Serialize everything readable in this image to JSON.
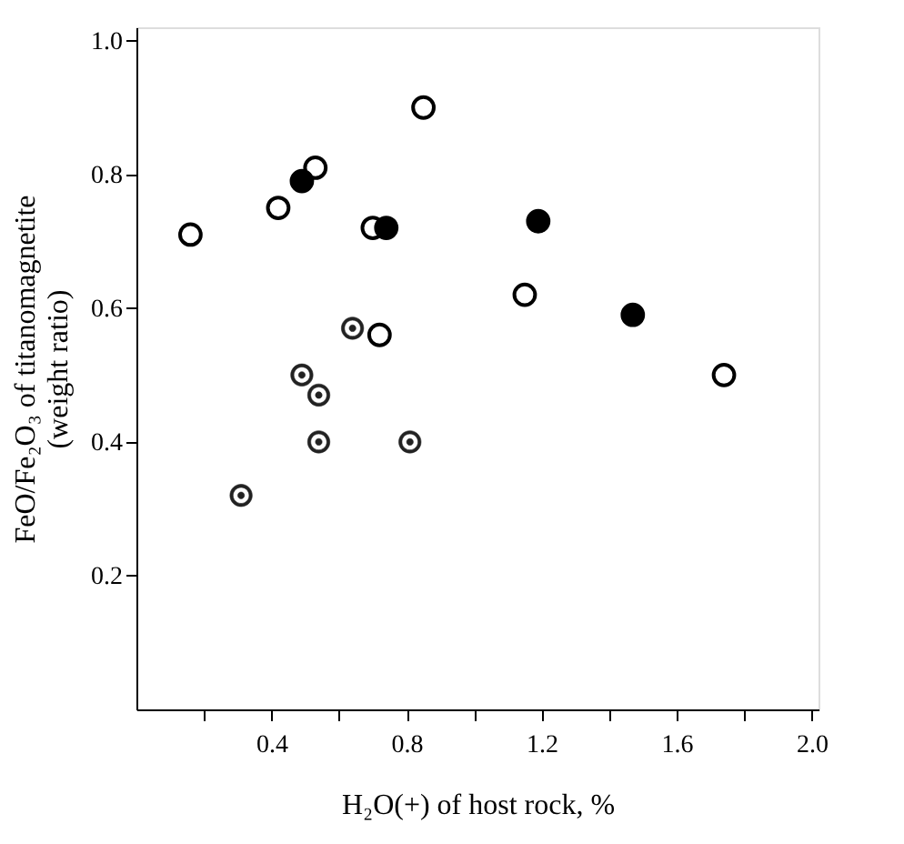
{
  "chart_data": {
    "type": "scatter",
    "xlabel": "H₂O(+) of host rock, %",
    "ylabel": "FeO/Fe₂O₃ of titanomagnetite\n(weight ratio)",
    "xlim": [
      0,
      2.02
    ],
    "ylim": [
      0,
      1.02
    ],
    "xticks": [
      {
        "value": 0.2,
        "label": null
      },
      0.4,
      {
        "value": 0.6,
        "label": null
      },
      0.8,
      {
        "value": 1.0,
        "label": null
      },
      1.2,
      {
        "value": 1.4,
        "label": null
      },
      1.6,
      {
        "value": 1.8,
        "label": null
      },
      {
        "value": 2.0,
        "label": "2.0"
      }
    ],
    "yticks": [
      0.2,
      0.4,
      0.6,
      0.8,
      {
        "value": 1.0,
        "label": "1.0"
      }
    ],
    "grid": false,
    "marker": "circle",
    "series": [
      {
        "color": "#ffffff",
        "x": [
          0.16,
          0.42,
          0.53,
          0.85,
          0.7,
          0.72,
          1.15,
          1.74
        ],
        "values": [
          0.71,
          0.75,
          0.81,
          0.9,
          0.72,
          0.56,
          0.62,
          0.5
        ]
      },
      {
        "color": "#000000",
        "x": [
          0.49,
          0.74,
          1.19,
          1.47
        ],
        "values": [
          0.79,
          0.72,
          0.73,
          0.59
        ]
      },
      {
        "color": "#222222",
        "x": [
          0.31,
          0.49,
          0.54,
          0.54,
          0.64,
          0.81
        ],
        "values": [
          0.32,
          0.5,
          0.47,
          0.4,
          0.57,
          0.4
        ]
      }
    ]
  }
}
